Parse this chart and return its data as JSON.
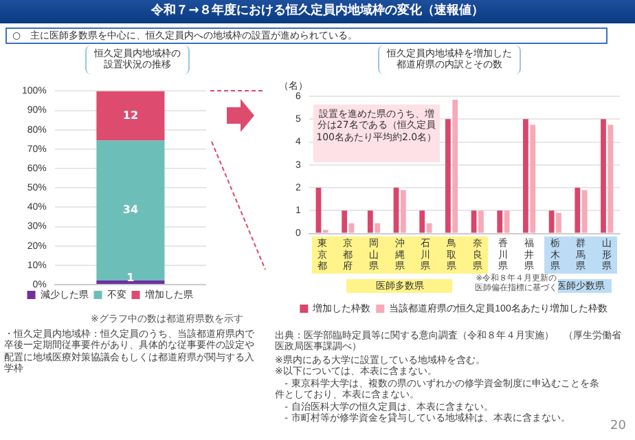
{
  "chart_data": [
    {
      "type": "bar",
      "title": "恒久定員内地域枠の設置状況の推移",
      "stacked": true,
      "categories": [
        null
      ],
      "series": [
        {
          "name": "減少した県",
          "color": "#7030a0",
          "values": [
            2.1
          ]
        },
        {
          "name": "不変",
          "color": "#6cbfb8",
          "values": [
            72.3
          ]
        },
        {
          "name": "増加した県",
          "color": "#dd4b6e",
          "values": [
            25.6
          ]
        }
      ],
      "ylim": [
        0,
        100
      ],
      "yticks": [
        {
          "value": 0,
          "label": "0%"
        },
        {
          "value": 10,
          "label": "10%"
        },
        {
          "value": 20,
          "label": "20%"
        },
        {
          "value": 30,
          "label": "30%"
        },
        {
          "value": 40,
          "label": "40%"
        },
        {
          "value": 50,
          "label": "50%"
        },
        {
          "value": 60,
          "label": "60%"
        },
        {
          "value": 70,
          "label": "70%"
        },
        {
          "value": 80,
          "label": "80%"
        },
        {
          "value": 90,
          "label": "90%"
        },
        {
          "value": 100,
          "label": "100%"
        }
      ],
      "grid": "y",
      "legend": "bottom",
      "tick_labels": "y",
      "annotations": [
        "令和７→８年度における恒久定員内地域枠の変化（速報値）",
        "○　主に医師多数県を中心に、恒久定員内への地域枠の設置が進められている。",
        "※グラフ中の数は都道府県数を示す",
        "・恒久定員内地域枠：恒久定員のうち、当該都道府県内で卒後一定期間従事要件があり、具体的な従事要件の設定や配置に地域医療対策協議会もしくは都道府県が関与する入学枠",
        "20",
        "1",
        "34",
        "12"
      ]
    },
    {
      "type": "bar",
      "title": "恒久定員内地域枠を増加した都道府県の内訳とその数",
      "ylabel": "（名）",
      "categories": [
        "東京都",
        "京都府",
        "岡山県",
        "沖縄県",
        "石川県",
        "鳥取県",
        "奈良県",
        "香川県",
        "福井県",
        "栃木県",
        "群馬県",
        "山形県"
      ],
      "series": [
        {
          "name": "増加した枠数",
          "color": "#d9456b",
          "values": [
            2,
            1,
            1,
            2,
            1,
            5,
            1,
            1,
            5,
            1,
            2,
            5
          ]
        },
        {
          "name": "当該都道府県の恒久定員100名あたり増加した枠数",
          "color": "#f7a9b8",
          "values": [
            0.15,
            0.45,
            0.45,
            1.9,
            0.45,
            5.85,
            1,
            1,
            4.75,
            0.9,
            1.9,
            4.75
          ]
        }
      ],
      "ylim": [
        0,
        6
      ],
      "yticks": [
        0,
        1,
        2,
        3,
        4,
        5,
        6
      ],
      "grid": "y",
      "legend": "bottom",
      "annotations": [
        "設置を進めた県のうち、増分は27名である（恒久定員100名あたり平均約2.0名）",
        "医師多数県",
        "医師少数県",
        "※令和８年４月更新の医師偏在指標に基づく",
        "出典：医学部臨時定員等に関する意向調査（令和８年４月実施）　（厚生労働省医政局医事課調べ）",
        "※県内にある大学に設置している地域枠を含む。\n※以下については、本表に含まない。\n　- 東京科学大学は、複数の県のいずれかの修学資金制度に申込むことを条件としており、本表に含まない。\n　- 自治医科大学の恒久定員は、本表に含まない。\n　- 市町村等が修学資金を貸与している地域枠は、本表に含まない。"
      ]
    }
  ]
}
